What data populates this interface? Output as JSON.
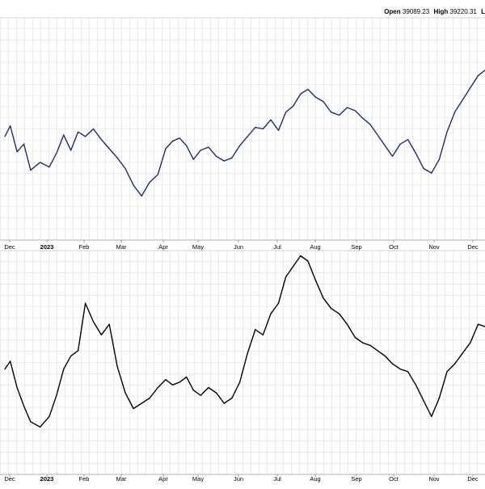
{
  "header": {
    "open_label": "Open",
    "open_value": "39089.23",
    "high_label": "High",
    "high_value": "39220.31",
    "low_label_partial": "L"
  },
  "colors": {
    "upper_series": "#1f2a7a",
    "lower_series": "#000000",
    "grid": "#dcdcdc",
    "axis_text": "#000000"
  },
  "chart_data": [
    {
      "type": "line",
      "title": "",
      "x_tick_labels": [
        "Dec",
        "2023",
        "Feb",
        "Mar",
        "Apr",
        "May",
        "Jun",
        "Jul",
        "Aug",
        "Sep",
        "Oct",
        "Nov",
        "Dec"
      ],
      "grid": true,
      "series": [
        {
          "x": [
            "2022-12-01",
            "2022-12-05",
            "2022-12-10",
            "2022-12-15",
            "2022-12-20",
            "2022-12-27",
            "2023-01-03",
            "2023-01-09",
            "2023-01-15",
            "2023-01-21",
            "2023-01-27",
            "2023-02-02",
            "2023-02-08",
            "2023-02-14",
            "2023-02-20",
            "2023-02-26",
            "2023-03-04",
            "2023-03-10",
            "2023-03-16",
            "2023-03-22",
            "2023-03-28",
            "2023-04-03",
            "2023-04-09",
            "2023-04-15",
            "2023-04-21",
            "2023-04-27",
            "2023-05-03",
            "2023-05-09",
            "2023-05-15",
            "2023-05-21",
            "2023-05-27",
            "2023-06-02",
            "2023-06-08",
            "2023-06-14",
            "2023-06-20",
            "2023-06-26",
            "2023-07-02",
            "2023-07-08",
            "2023-07-14",
            "2023-07-20",
            "2023-07-26",
            "2023-08-01",
            "2023-08-07",
            "2023-08-13",
            "2023-08-19",
            "2023-08-25",
            "2023-08-31",
            "2023-09-06",
            "2023-09-12",
            "2023-09-18",
            "2023-09-24",
            "2023-09-30",
            "2023-10-06",
            "2023-10-12",
            "2023-10-18",
            "2023-10-24",
            "2023-10-30",
            "2023-11-05",
            "2023-11-11",
            "2023-11-17",
            "2023-11-23",
            "2023-11-29",
            "2023-12-05",
            "2023-12-11",
            "2023-12-17"
          ],
          "values": [
            33900,
            34250,
            33400,
            33650,
            32800,
            33050,
            32900,
            33350,
            33950,
            33450,
            34050,
            33900,
            34150,
            33800,
            33500,
            33200,
            32850,
            32300,
            31950,
            32400,
            32650,
            33500,
            33750,
            33850,
            33600,
            33150,
            33450,
            33550,
            33250,
            33100,
            33200,
            33600,
            33900,
            34200,
            34150,
            34450,
            34100,
            34700,
            34900,
            35300,
            35450,
            35200,
            35050,
            34700,
            34600,
            34850,
            34750,
            34500,
            34300,
            33950,
            33600,
            33250,
            33650,
            33800,
            33350,
            32850,
            32700,
            33150,
            34050,
            34700,
            35100,
            35500,
            35900,
            36100,
            36400
          ]
        },
        {
          "x": [
            "2022-12-01",
            "2022-12-05",
            "2022-12-10",
            "2022-12-15",
            "2022-12-20",
            "2022-12-27",
            "2023-01-03",
            "2023-01-09",
            "2023-01-15",
            "2023-01-21",
            "2023-01-27",
            "2023-02-02",
            "2023-02-08",
            "2023-02-14",
            "2023-02-20",
            "2023-02-26",
            "2023-03-04",
            "2023-03-10",
            "2023-03-16",
            "2023-03-22",
            "2023-03-28",
            "2023-04-03",
            "2023-04-09",
            "2023-04-15",
            "2023-04-21",
            "2023-04-27",
            "2023-05-03",
            "2023-05-09",
            "2023-05-15",
            "2023-05-21",
            "2023-05-27",
            "2023-06-02",
            "2023-06-08",
            "2023-06-14",
            "2023-06-20",
            "2023-06-26",
            "2023-07-02",
            "2023-07-08",
            "2023-07-14",
            "2023-07-20",
            "2023-07-26",
            "2023-08-01",
            "2023-08-07",
            "2023-08-13",
            "2023-08-19",
            "2023-08-25",
            "2023-08-31",
            "2023-09-06",
            "2023-09-12",
            "2023-09-18",
            "2023-09-24",
            "2023-09-30",
            "2023-10-06",
            "2023-10-12",
            "2023-10-18",
            "2023-10-24",
            "2023-10-30",
            "2023-11-05",
            "2023-11-11",
            "2023-11-17",
            "2023-11-23",
            "2023-11-29",
            "2023-12-05",
            "2023-12-11",
            "2023-12-17"
          ],
          "values": [
            125,
            128,
            118,
            111,
            105,
            103,
            107,
            115,
            125,
            130,
            132,
            150,
            143,
            138,
            142,
            126,
            116,
            110,
            112,
            114,
            118,
            121,
            119,
            120,
            122,
            117,
            115,
            118,
            116,
            112,
            114,
            120,
            131,
            140,
            138,
            146,
            150,
            160,
            164,
            168,
            166,
            159,
            152,
            148,
            146,
            142,
            137,
            135,
            134,
            132,
            130,
            127,
            125,
            124,
            119,
            113,
            107,
            114,
            124,
            127,
            131,
            135,
            142,
            141,
            145
          ]
        }
      ]
    }
  ]
}
